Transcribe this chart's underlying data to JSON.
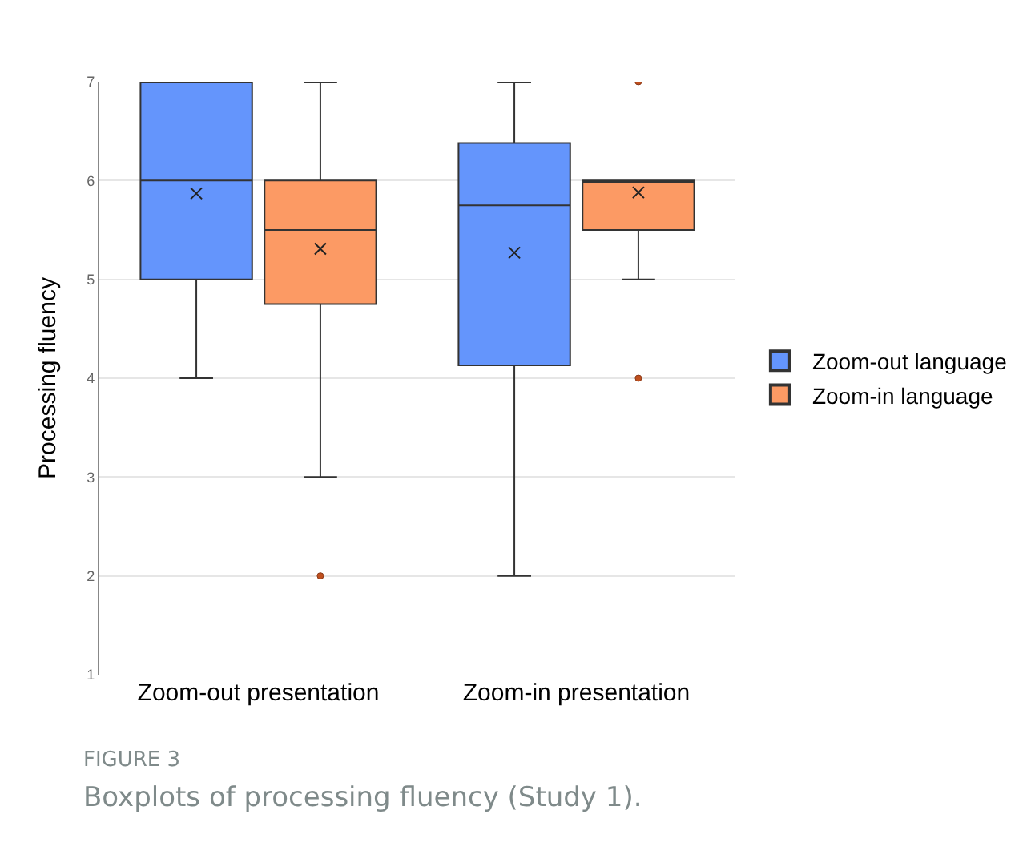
{
  "chart_data": {
    "type": "box",
    "ylabel": "Processing fluency",
    "categories": [
      "Zoom-out presentation",
      "Zoom-in presentation"
    ],
    "series": [
      {
        "name": "Zoom-out language",
        "color": "#6495fc",
        "boxes": [
          {
            "low": 4,
            "q1": 5,
            "median": 6,
            "q3": 7,
            "high": 7,
            "mean": 5.87
          },
          {
            "low": 2,
            "q1": 4.13,
            "median": 5.75,
            "q3": 6.38,
            "high": 7,
            "mean": 5.27
          }
        ]
      },
      {
        "name": "Zoom-in language",
        "color": "#fc9a64",
        "boxes": [
          {
            "low": 3,
            "q1": 4.75,
            "median": 5.5,
            "q3": 6,
            "high": 7,
            "mean": 5.31,
            "outliers": [
              2
            ]
          },
          {
            "low": 5,
            "q1": 5.5,
            "median": 6,
            "q3": 6,
            "high": 6,
            "mean": 5.88,
            "outliers": [
              7,
              4
            ]
          }
        ]
      }
    ],
    "ylim": [
      1,
      7
    ],
    "yticks": [
      1,
      2,
      3,
      4,
      5,
      6,
      7
    ],
    "grid": "y",
    "legend": "right",
    "marker": "cross",
    "annotations": [
      "FIGURE 3",
      "Boxplots of processing fluency (Study 1)."
    ]
  }
}
